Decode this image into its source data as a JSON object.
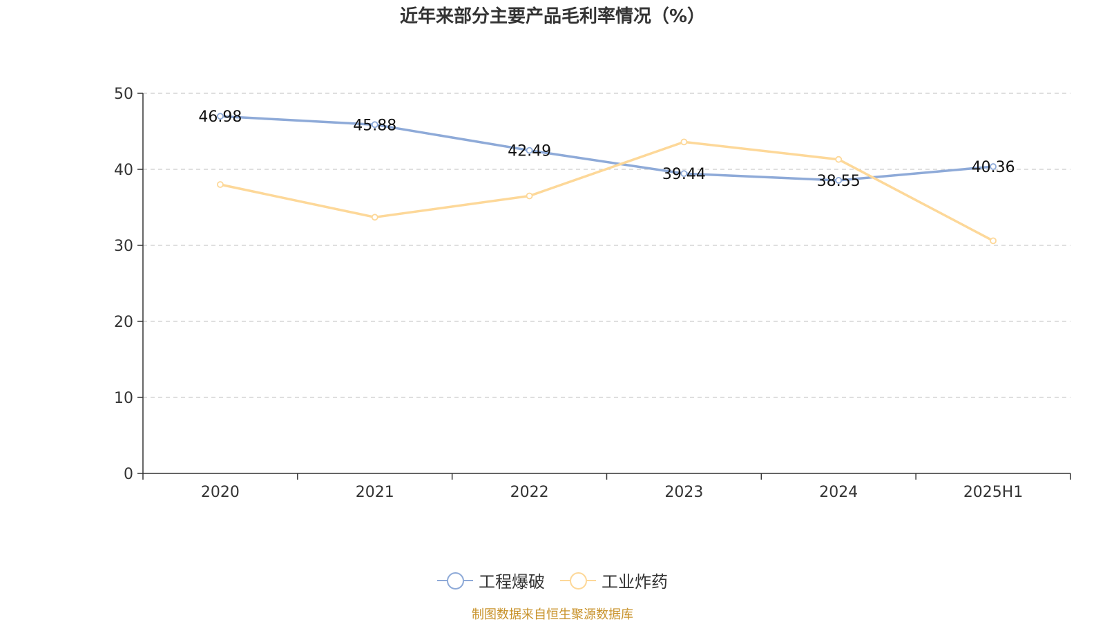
{
  "chart_data": {
    "type": "line",
    "title": "近年来部分主要产品毛利率情况（%）",
    "categories": [
      "2020",
      "2021",
      "2022",
      "2023",
      "2024",
      "2025H1"
    ],
    "series": [
      {
        "name": "工程爆破",
        "color": "#8eaad8",
        "values": [
          46.98,
          45.88,
          42.49,
          39.44,
          38.55,
          40.36
        ],
        "labels": [
          "46.98",
          "45.88",
          "42.49",
          "39.44",
          "38.55",
          "40.36"
        ],
        "show_labels": true
      },
      {
        "name": "工业炸药",
        "color": "#fdd899",
        "values": [
          38.0,
          33.7,
          36.5,
          43.6,
          41.3,
          30.6
        ],
        "show_labels": false
      }
    ],
    "ylim": [
      0,
      50
    ],
    "yticks": [
      0,
      10,
      20,
      30,
      40,
      50
    ],
    "grid": true,
    "legend_position": "bottom"
  },
  "source_note": "制图数据来自恒生聚源数据库"
}
